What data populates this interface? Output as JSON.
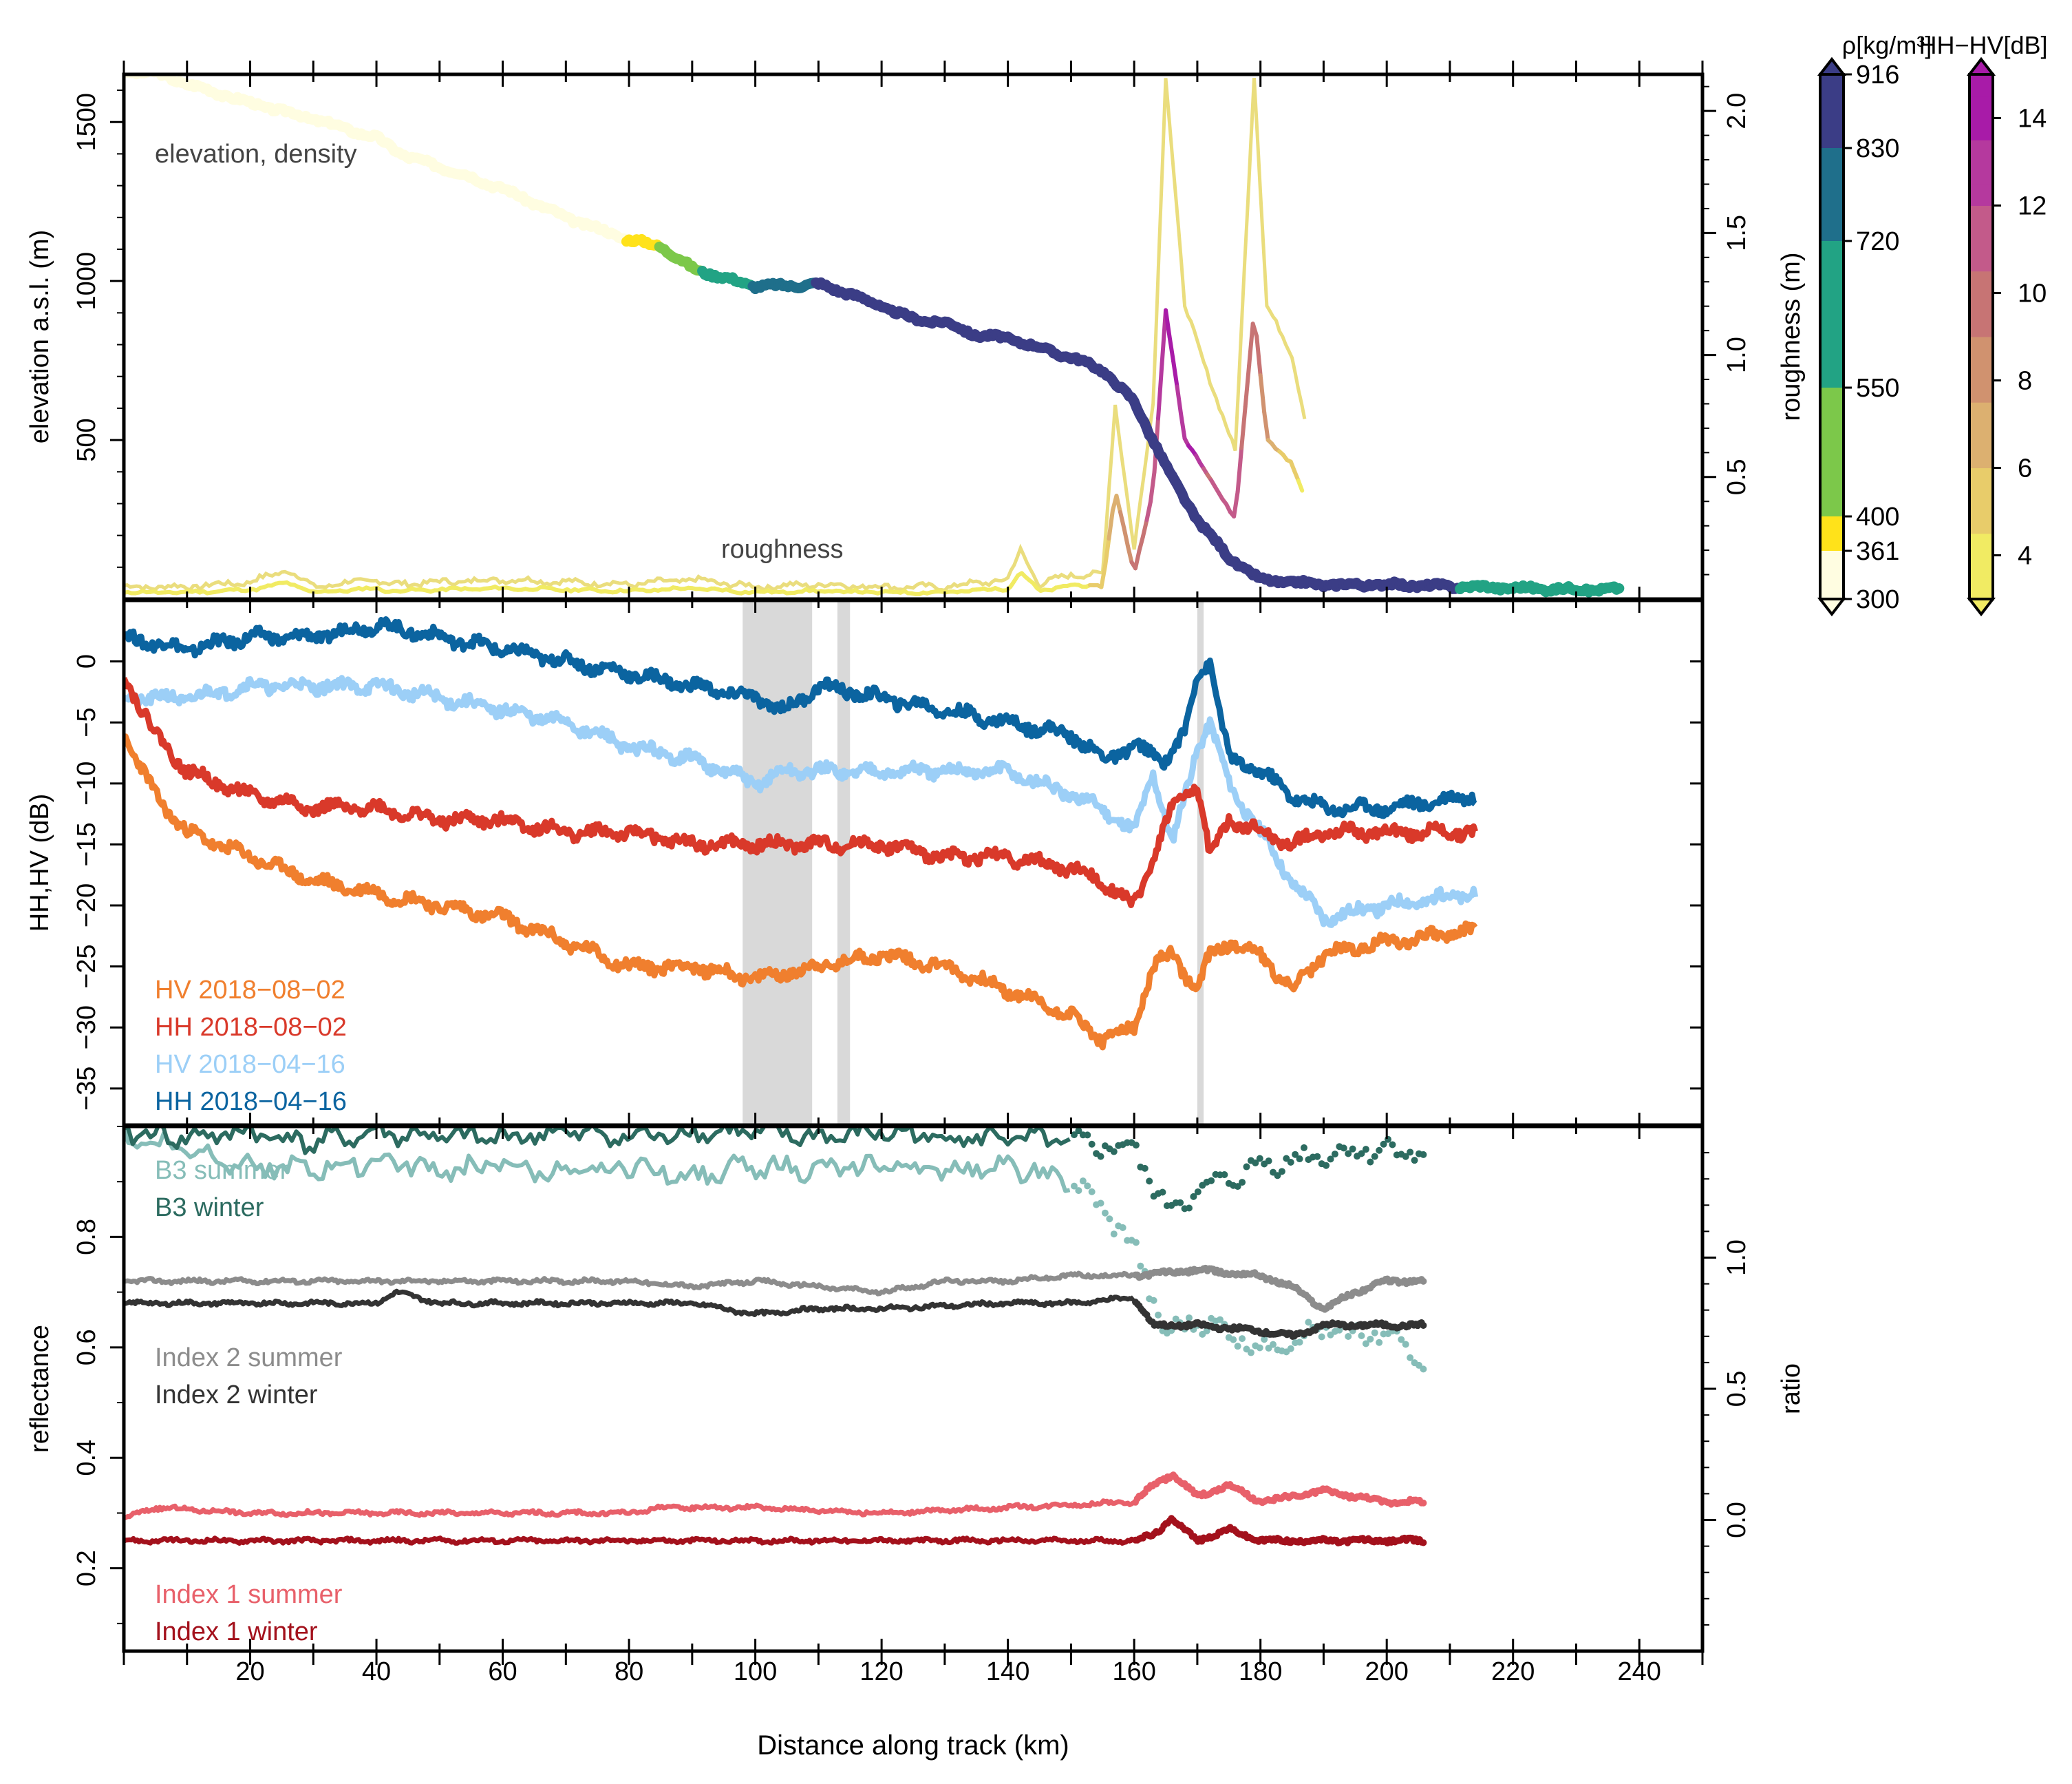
{
  "figure": {
    "xlabel": "Distance along track (km)",
    "xticks": [
      20,
      40,
      60,
      80,
      100,
      120,
      140,
      160,
      180,
      200,
      220,
      240
    ]
  },
  "panel1": {
    "ylabel": "elevation a.s.l. (m)",
    "ylabel_right": "roughness (m)",
    "yticks": [
      500,
      1000,
      1500
    ],
    "yticks_right": [
      "0.5",
      "1.0",
      "1.5",
      "2.0"
    ],
    "label_elevation": "elevation, density",
    "label_roughness": "roughness"
  },
  "panel2": {
    "ylabel": "HH,HV (dB)",
    "yticks": [
      "0",
      "−5",
      "−10",
      "−15",
      "−20",
      "−25",
      "−30",
      "−35"
    ],
    "legend": [
      {
        "label": "HV 2018−08−02",
        "color": "#f07f2e"
      },
      {
        "label": "HH 2018−08−02",
        "color": "#d9392a"
      },
      {
        "label": "HV 2018−04−16",
        "color": "#9ccff7"
      },
      {
        "label": "HH 2018−04−16",
        "color": "#0b64a0"
      }
    ]
  },
  "panel3": {
    "ylabel": "reflectance",
    "ylabel_right": "ratio",
    "yticks": [
      "0.2",
      "0.4",
      "0.6",
      "0.8"
    ],
    "yticks_right": [
      "0.0",
      "0.5",
      "1.0"
    ],
    "legend": [
      {
        "label": "B3 summer",
        "color": "#86bdb8"
      },
      {
        "label": "B3 winter",
        "color": "#2c6b60"
      },
      {
        "label": "Index 2 summer",
        "color": "#8c8c8c"
      },
      {
        "label": "Index 2 winter",
        "color": "#333333"
      },
      {
        "label": "Index 1 summer",
        "color": "#e8606a"
      },
      {
        "label": "Index 1 winter",
        "color": "#a3111c"
      }
    ]
  },
  "colorbars": {
    "density_title": "ρ[kg/m³]",
    "density_ticks": [
      "916",
      "830",
      "720",
      "550",
      "400",
      "361",
      "300"
    ],
    "hhhv_title": "HH−HV[dB]",
    "hhhv_ticks": [
      "14",
      "12",
      "10",
      "8",
      "6",
      "4"
    ]
  },
  "chart_data": {
    "type": "line",
    "x_range_km": [
      0,
      250
    ],
    "elevation": {
      "ylim": [
        0,
        1650
      ],
      "km": [
        0,
        5,
        10,
        20,
        30,
        40,
        45,
        50,
        60,
        70,
        80,
        85,
        90,
        95,
        100,
        105,
        110,
        115,
        120,
        125,
        130,
        135,
        140,
        145,
        150,
        155,
        160,
        163,
        166,
        170,
        175,
        180,
        190,
        200,
        210,
        220,
        230,
        237
      ],
      "m": [
        1660,
        1655,
        1620,
        1560,
        1510,
        1450,
        1390,
        1360,
        1290,
        1200,
        1130,
        1110,
        1040,
        1010,
        985,
        985,
        990,
        960,
        920,
        880,
        870,
        830,
        820,
        790,
        760,
        720,
        620,
        500,
        380,
        250,
        130,
        60,
        45,
        45,
        40,
        35,
        30,
        30
      ],
      "density_segments": [
        {
          "from_km": 0,
          "to_km": 80,
          "density": 300
        },
        {
          "from_km": 80,
          "to_km": 85,
          "density": 380
        },
        {
          "from_km": 85,
          "to_km": 92,
          "density": 500
        },
        {
          "from_km": 92,
          "to_km": 100,
          "density": 650
        },
        {
          "from_km": 100,
          "to_km": 110,
          "density": 760
        },
        {
          "from_km": 110,
          "to_km": 212,
          "density": 880
        },
        {
          "from_km": 212,
          "to_km": 237,
          "density": 600
        }
      ]
    },
    "roughness": {
      "ylim": [
        0,
        2.15
      ],
      "km": [
        0,
        10,
        20,
        26,
        30,
        40,
        42,
        50,
        60,
        70,
        80,
        90,
        100,
        110,
        120,
        130,
        140,
        142,
        145,
        150,
        155,
        157,
        160,
        163,
        165,
        168,
        172,
        176,
        179,
        181,
        185,
        187
      ],
      "m": [
        0.05,
        0.05,
        0.07,
        0.12,
        0.05,
        0.08,
        0.06,
        0.07,
        0.08,
        0.07,
        0.06,
        0.08,
        0.05,
        0.06,
        0.05,
        0.05,
        0.08,
        0.2,
        0.06,
        0.1,
        0.1,
        0.8,
        0.2,
        0.8,
        2.15,
        1.2,
        0.9,
        0.6,
        2.15,
        1.2,
        1.0,
        0.75
      ]
    },
    "hh_minus_hv_db": {
      "km": [
        0,
        40,
        80,
        120,
        150,
        155,
        160,
        163,
        166,
        168,
        170,
        172,
        174,
        176,
        180,
        183,
        187
      ],
      "db": [
        3.5,
        3.0,
        2.8,
        3.0,
        3.5,
        5,
        9,
        11,
        14,
        13,
        14,
        10,
        12,
        11,
        9,
        6,
        4
      ]
    },
    "backscatter": {
      "ylim_db": [
        -38,
        5
      ],
      "series": [
        {
          "name": "HH 2018−04−16",
          "km": [
            0,
            10,
            20,
            30,
            40,
            50,
            60,
            70,
            80,
            90,
            100,
            105,
            110,
            120,
            130,
            140,
            150,
            155,
            160,
            165,
            168,
            170,
            172,
            175,
            180,
            185,
            190,
            200,
            214
          ],
          "db": [
            2,
            1,
            2,
            2,
            3,
            2,
            1,
            0,
            -1,
            -2,
            -3,
            -4,
            -2,
            -3,
            -4,
            -5,
            -6,
            -8,
            -7,
            -8,
            -6,
            -1,
            0,
            -8,
            -9,
            -11,
            -12,
            -12,
            -11
          ]
        },
        {
          "name": "HV 2018−04−16",
          "km": [
            0,
            10,
            20,
            30,
            40,
            50,
            60,
            70,
            80,
            90,
            100,
            105,
            110,
            120,
            130,
            140,
            150,
            155,
            160,
            163,
            166,
            170,
            172,
            175,
            180,
            185,
            190,
            200,
            214
          ],
          "db": [
            -3,
            -3,
            -2,
            -2,
            -2,
            -3,
            -4,
            -5,
            -7,
            -8,
            -10,
            -9,
            -9,
            -9,
            -9,
            -9,
            -11,
            -12,
            -14,
            -9,
            -15,
            -7,
            -5,
            -10,
            -14,
            -18,
            -21,
            -20,
            -19
          ]
        },
        {
          "name": "HH 2018−08−02",
          "km": [
            0,
            5,
            10,
            20,
            30,
            40,
            50,
            60,
            70,
            80,
            90,
            100,
            110,
            120,
            130,
            140,
            150,
            155,
            160,
            163,
            166,
            170,
            172,
            175,
            180,
            185,
            190,
            200,
            214
          ],
          "db": [
            -1,
            -6,
            -9,
            -11,
            -12,
            -12,
            -13,
            -13,
            -14,
            -14,
            -15,
            -15,
            -15,
            -15,
            -16,
            -16,
            -17,
            -18,
            -20,
            -16,
            -12,
            -10,
            -16,
            -13,
            -14,
            -15,
            -14,
            -14,
            -14
          ]
        },
        {
          "name": "HV 2018−08−02",
          "km": [
            0,
            5,
            10,
            20,
            30,
            40,
            50,
            60,
            70,
            80,
            90,
            100,
            110,
            120,
            130,
            140,
            150,
            155,
            160,
            163,
            166,
            170,
            172,
            175,
            180,
            185,
            190,
            200,
            214
          ],
          "db": [
            -6,
            -11,
            -14,
            -16,
            -18,
            -19,
            -20,
            -21,
            -23,
            -25,
            -25,
            -26,
            -25,
            -24,
            -25,
            -27,
            -29,
            -31,
            -30,
            -25,
            -24,
            -27,
            -24,
            -23,
            -24,
            -27,
            -24,
            -23,
            -22
          ]
        }
      ],
      "gray_bands_km": [
        [
          98,
          109
        ],
        [
          113,
          115
        ],
        [
          170,
          171
        ]
      ]
    },
    "optical": {
      "ylim_reflectance": [
        0.05,
        1.0
      ],
      "ylim_ratio": [
        -0.5,
        1.5
      ],
      "series": [
        {
          "name": "B3 summer",
          "km": [
            0,
            10,
            20,
            30,
            40,
            50,
            60,
            70,
            80,
            90,
            100,
            110,
            120,
            130,
            140,
            150,
            155,
            160,
            165,
            170,
            180,
            190,
            200,
            206
          ],
          "value": [
            0.98,
            0.96,
            0.93,
            0.92,
            0.94,
            0.92,
            0.93,
            0.91,
            0.93,
            0.91,
            0.93,
            0.92,
            0.93,
            0.92,
            0.93,
            0.9,
            0.85,
            0.78,
            0.62,
            0.65,
            0.6,
            0.63,
            0.62,
            0.58
          ]
        },
        {
          "name": "B3 winter",
          "km": [
            0,
            10,
            20,
            30,
            40,
            50,
            60,
            70,
            80,
            90,
            100,
            110,
            120,
            130,
            140,
            150,
            160,
            165,
            170,
            180,
            190,
            200,
            206
          ],
          "value": [
            0.99,
            0.98,
            0.99,
            0.97,
            0.99,
            0.98,
            0.98,
            0.99,
            0.98,
            0.99,
            0.99,
            0.98,
            0.99,
            0.98,
            0.98,
            0.97,
            0.96,
            0.85,
            0.88,
            0.93,
            0.95,
            0.96,
            0.95
          ]
        },
        {
          "name": "Index 2 summer",
          "km": [
            0,
            20,
            40,
            60,
            80,
            90,
            100,
            110,
            120,
            130,
            140,
            150,
            160,
            170,
            180,
            185,
            190,
            195,
            200,
            206
          ],
          "value": [
            0.72,
            0.72,
            0.72,
            0.72,
            0.72,
            0.71,
            0.72,
            0.71,
            0.7,
            0.72,
            0.72,
            0.73,
            0.73,
            0.74,
            0.73,
            0.71,
            0.67,
            0.7,
            0.72,
            0.72
          ]
        },
        {
          "name": "Index 2 winter",
          "km": [
            0,
            20,
            40,
            43,
            50,
            60,
            80,
            90,
            100,
            110,
            120,
            140,
            150,
            160,
            163,
            170,
            180,
            185,
            190,
            200,
            206
          ],
          "value": [
            0.68,
            0.68,
            0.68,
            0.7,
            0.68,
            0.68,
            0.68,
            0.68,
            0.66,
            0.67,
            0.67,
            0.68,
            0.68,
            0.69,
            0.64,
            0.64,
            0.63,
            0.62,
            0.64,
            0.64,
            0.64
          ]
        },
        {
          "name": "Index 1 summer",
          "km": [
            0,
            5,
            20,
            40,
            60,
            80,
            85,
            100,
            120,
            140,
            160,
            163,
            166,
            170,
            175,
            180,
            185,
            190,
            200,
            206
          ],
          "value": [
            0.29,
            0.31,
            0.3,
            0.3,
            0.3,
            0.3,
            0.31,
            0.31,
            0.3,
            0.31,
            0.32,
            0.35,
            0.37,
            0.33,
            0.35,
            0.32,
            0.33,
            0.34,
            0.32,
            0.32
          ]
        },
        {
          "name": "Index 1 winter",
          "km": [
            0,
            20,
            40,
            60,
            80,
            100,
            120,
            140,
            160,
            163,
            166,
            170,
            175,
            180,
            190,
            200,
            206
          ],
          "value": [
            0.25,
            0.25,
            0.25,
            0.25,
            0.25,
            0.25,
            0.25,
            0.25,
            0.25,
            0.26,
            0.29,
            0.25,
            0.27,
            0.25,
            0.25,
            0.25,
            0.25
          ]
        }
      ]
    }
  }
}
